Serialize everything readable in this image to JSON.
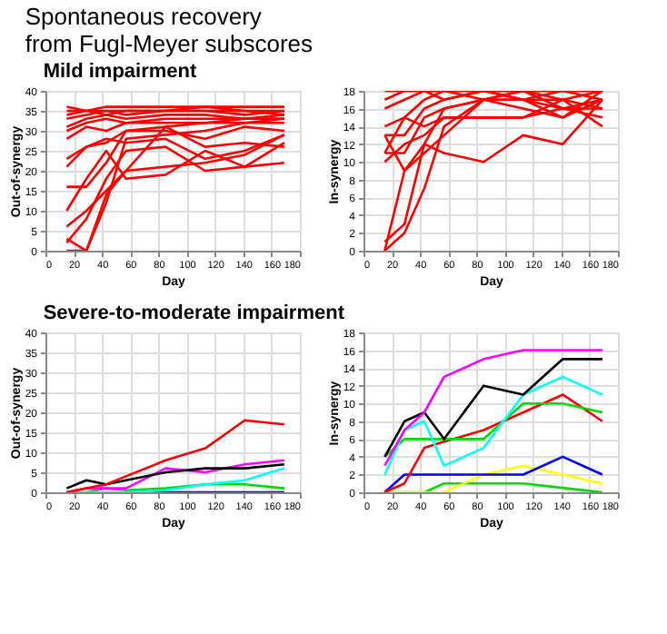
{
  "chart_data": [
    {
      "type": "line",
      "title": "Spontaneous recovery\nfrom Fugl-Meyer subscores",
      "subtitle": "Mild impairment",
      "xlabel": "Day",
      "ylabel": "Out-of-synergy",
      "x": [
        15,
        29,
        43,
        57,
        85,
        113,
        141,
        169
      ],
      "xlim": [
        0,
        180
      ],
      "xticks": [
        0,
        20,
        40,
        60,
        80,
        100,
        120,
        140,
        160,
        180
      ],
      "ylim": [
        0,
        40
      ],
      "yticks": [
        0,
        5,
        10,
        15,
        20,
        25,
        30,
        35,
        40
      ],
      "grid": true,
      "series": [
        {
          "color": "#ff0000",
          "values": [
            36,
            35,
            36,
            36,
            36,
            36,
            36,
            36
          ]
        },
        {
          "color": "#ff0000",
          "values": [
            35,
            35,
            35,
            35,
            35,
            36,
            35,
            35
          ]
        },
        {
          "color": "#ff0000",
          "values": [
            34,
            35,
            34,
            35,
            35,
            35,
            35,
            34
          ]
        },
        {
          "color": "#ff0000",
          "values": [
            33,
            34,
            35,
            34,
            35,
            35,
            34,
            35
          ]
        },
        {
          "color": "#ff0000",
          "values": [
            31,
            33,
            34,
            33,
            34,
            34,
            33,
            34
          ]
        },
        {
          "color": "#ff0000",
          "values": [
            30,
            32,
            33,
            32,
            33,
            33,
            33,
            33
          ]
        },
        {
          "color": "#ff0000",
          "values": [
            28,
            31,
            30,
            32,
            32,
            32,
            32,
            33
          ]
        },
        {
          "color": "#ff0000",
          "values": [
            23,
            26,
            28,
            27,
            28,
            23,
            25,
            29
          ]
        },
        {
          "color": "#ff0000",
          "values": [
            21,
            26,
            27,
            30,
            30,
            28,
            31,
            30
          ]
        },
        {
          "color": "#ff0000",
          "values": [
            16,
            16,
            22,
            30,
            31,
            26,
            27,
            26
          ]
        },
        {
          "color": "#ff0000",
          "values": [
            10,
            18,
            25,
            18,
            19,
            25,
            21,
            27
          ]
        },
        {
          "color": "#ff0000",
          "values": [
            6,
            10,
            15,
            20,
            21,
            22,
            24,
            29
          ]
        },
        {
          "color": "#ff0000",
          "values": [
            2,
            8,
            18,
            25,
            26,
            20,
            21,
            22
          ]
        },
        {
          "color": "#ff0000",
          "values": [
            0,
            0,
            14,
            20,
            31,
            32,
            33,
            33
          ]
        },
        {
          "color": "#ff0000",
          "values": [
            3,
            0,
            12,
            28,
            29,
            30,
            32,
            32
          ]
        }
      ]
    },
    {
      "type": "line",
      "xlabel": "Day",
      "ylabel": "In-synergy",
      "x": [
        15,
        29,
        43,
        57,
        85,
        113,
        141,
        169
      ],
      "xlim": [
        0,
        180
      ],
      "xticks": [
        0,
        20,
        40,
        60,
        80,
        100,
        120,
        140,
        160,
        180
      ],
      "ylim": [
        0,
        18
      ],
      "yticks": [
        0,
        2,
        4,
        6,
        8,
        10,
        12,
        14,
        16,
        18
      ],
      "grid": true,
      "series": [
        {
          "color": "#ff0000",
          "values": [
            18,
            18,
            18,
            18,
            18,
            18,
            18,
            18
          ]
        },
        {
          "color": "#ff0000",
          "values": [
            17,
            18,
            18,
            18,
            18,
            18,
            18,
            18
          ]
        },
        {
          "color": "#ff0000",
          "values": [
            16,
            17,
            18,
            17,
            18,
            17,
            18,
            17
          ]
        },
        {
          "color": "#ff0000",
          "values": [
            14,
            15,
            17,
            18,
            17,
            17,
            16,
            17
          ]
        },
        {
          "color": "#ff0000",
          "values": [
            13,
            13,
            16,
            17,
            18,
            17,
            17,
            16
          ]
        },
        {
          "color": "#ff0000",
          "values": [
            11,
            11,
            15,
            16,
            17,
            16,
            15,
            17
          ]
        },
        {
          "color": "#ff0000",
          "values": [
            10,
            12,
            13,
            15,
            15,
            15,
            16,
            15
          ]
        },
        {
          "color": "#ff0000",
          "values": [
            13,
            9,
            12,
            11,
            10,
            13,
            12,
            17
          ]
        },
        {
          "color": "#ff0000",
          "values": [
            11,
            15,
            14,
            15,
            15,
            15,
            17,
            14
          ]
        },
        {
          "color": "#ff0000",
          "values": [
            1,
            3,
            12,
            16,
            17,
            18,
            17,
            18
          ]
        },
        {
          "color": "#ff0000",
          "values": [
            0,
            2,
            7,
            14,
            17,
            18,
            16,
            16
          ]
        },
        {
          "color": "#ff0000",
          "values": [
            0,
            9,
            11,
            13,
            17,
            17,
            15,
            18
          ]
        }
      ]
    },
    {
      "type": "line",
      "subtitle": "Severe-to-moderate impairment",
      "xlabel": "Day",
      "ylabel": "Out-of-synergy",
      "x": [
        15,
        29,
        43,
        57,
        85,
        113,
        141,
        169
      ],
      "xlim": [
        0,
        180
      ],
      "xticks": [
        0,
        20,
        40,
        60,
        80,
        100,
        120,
        140,
        160,
        180
      ],
      "ylim": [
        0,
        40
      ],
      "yticks": [
        0,
        5,
        10,
        15,
        20,
        25,
        30,
        35,
        40
      ],
      "grid": true,
      "series": [
        {
          "color": "#0000ff",
          "values": [
            null,
            null,
            null,
            0,
            0,
            0,
            0,
            0
          ]
        },
        {
          "color": "#00dd00",
          "values": [
            0,
            0,
            1,
            0.5,
            1,
            2,
            2,
            1
          ]
        },
        {
          "color": "#00ffff",
          "values": [
            0,
            0,
            0,
            0,
            0.5,
            2,
            3,
            6
          ]
        },
        {
          "color": "#ff00ff",
          "values": [
            0,
            1,
            1,
            1,
            6,
            5,
            7,
            8
          ]
        },
        {
          "color": "#000000",
          "values": [
            1,
            3,
            2,
            3,
            5,
            6,
            6,
            7
          ]
        },
        {
          "color": "#ff0000",
          "values": [
            0,
            1,
            2,
            4,
            8,
            11,
            18,
            17
          ]
        }
      ]
    },
    {
      "type": "line",
      "xlabel": "Day",
      "ylabel": "In-synergy",
      "x": [
        15,
        29,
        43,
        57,
        85,
        113,
        141,
        169
      ],
      "xlim": [
        0,
        180
      ],
      "xticks": [
        0,
        20,
        40,
        60,
        80,
        100,
        120,
        140,
        160,
        180
      ],
      "ylim": [
        0,
        18
      ],
      "yticks": [
        0,
        2,
        4,
        6,
        8,
        10,
        12,
        14,
        16,
        18
      ],
      "grid": true,
      "series": [
        {
          "color": "#00dd00",
          "values": [
            0,
            0,
            0,
            1,
            1,
            1,
            0.5,
            0
          ]
        },
        {
          "color": "#ffff00",
          "values": [
            0,
            0,
            0,
            0,
            2,
            3,
            2,
            1
          ]
        },
        {
          "color": "#0000ff",
          "values": [
            0,
            2,
            2,
            2,
            2,
            2,
            4,
            2
          ]
        },
        {
          "color": "#ff0000",
          "values": [
            0,
            1,
            5,
            5.7,
            7,
            9,
            11,
            8
          ]
        },
        {
          "color": "#00dd00",
          "values": [
            4,
            6,
            6,
            6,
            6,
            10,
            10,
            9
          ]
        },
        {
          "color": "#00ffff",
          "values": [
            2,
            7,
            8,
            3,
            5,
            11,
            13,
            11
          ]
        },
        {
          "color": "#000000",
          "values": [
            4,
            8,
            9,
            6,
            12,
            11,
            15,
            15
          ]
        },
        {
          "color": "#ff00ff",
          "values": [
            3,
            7,
            9,
            13,
            15,
            16,
            16,
            16
          ]
        }
      ]
    }
  ]
}
